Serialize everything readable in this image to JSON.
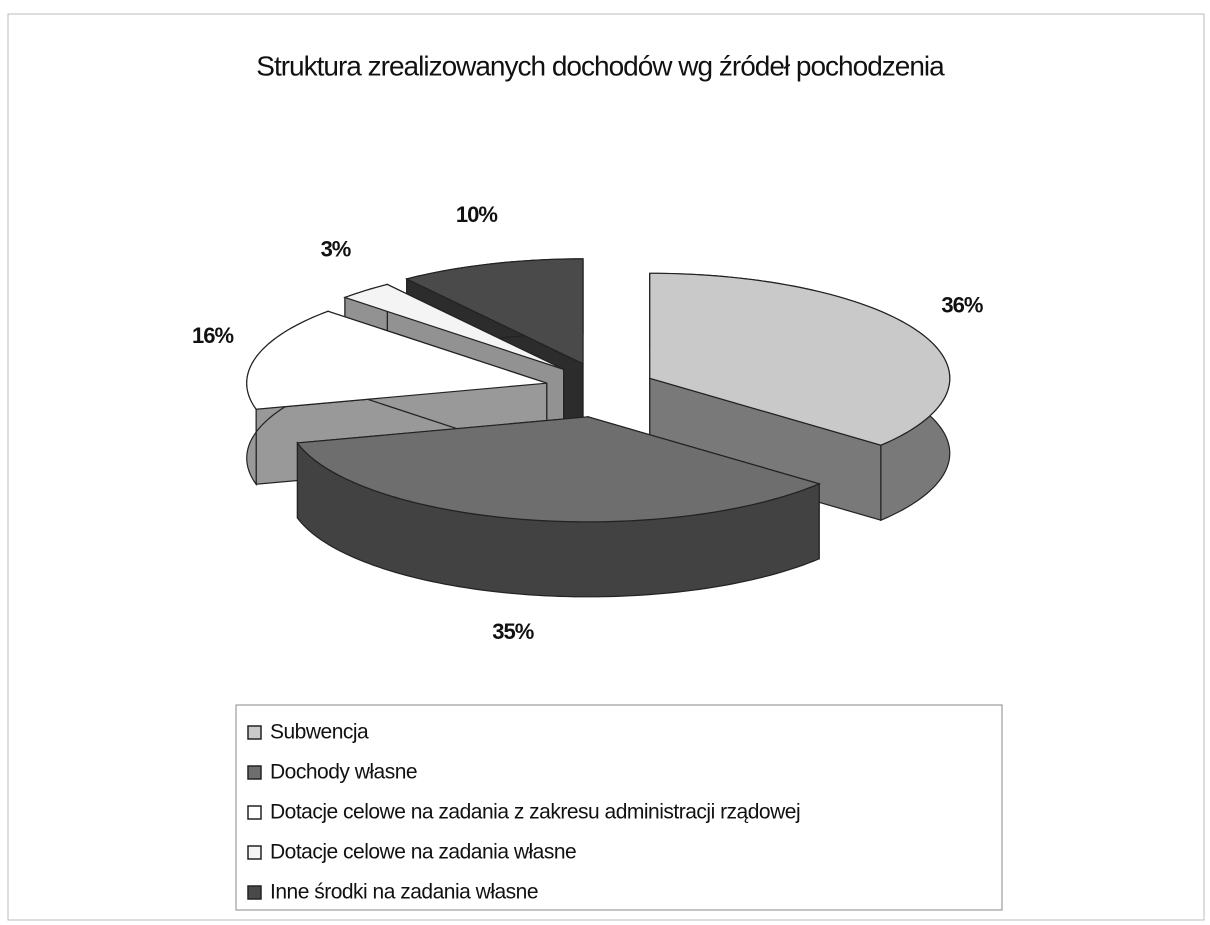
{
  "chart_data": {
    "type": "pie",
    "title": "Struktura zrealizowanych dochodów wg źródeł pochodzenia",
    "categories": [
      "Subwencja",
      "Dochody własne",
      "Dotacje celowe na zadania z zakresu administracji rządowej",
      "Dotacje celowe na zadania własne",
      "Inne środki na zadania własne"
    ],
    "values": [
      36,
      35,
      16,
      3,
      10
    ],
    "value_labels": [
      "36%",
      "35%",
      "16%",
      "3%",
      "10%"
    ],
    "colors": [
      "#c9c9c9",
      "#6e6e6e",
      "#ffffff",
      "#f4f4f4",
      "#4a4a4a"
    ],
    "legend": "bottom"
  }
}
